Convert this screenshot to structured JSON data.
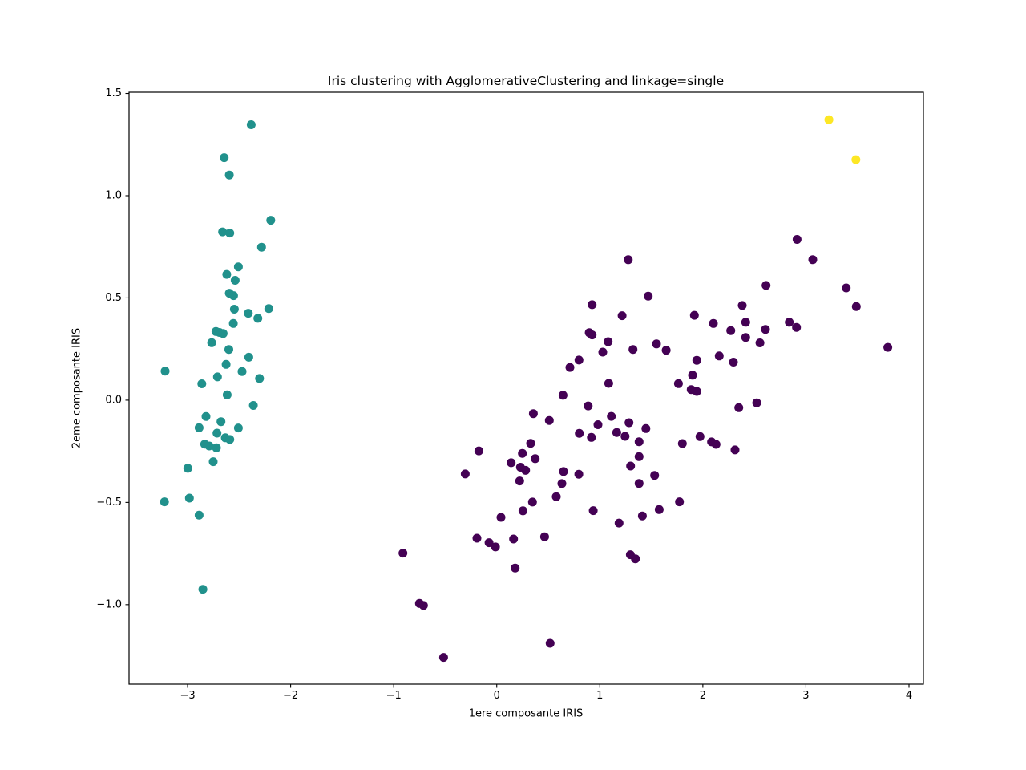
{
  "chart_data": {
    "type": "scatter",
    "title": "Iris clustering with AgglomerativeClustering and linkage=single",
    "xlabel": "1ere composante IRIS",
    "ylabel": "2eme composante IRIS",
    "xlim": [
      -3.568,
      4.14
    ],
    "ylim": [
      -1.389,
      1.506
    ],
    "grid": false,
    "legend_position": "none",
    "marker_radius": 5.5,
    "xticks": {
      "values": [
        -3,
        -2,
        -1,
        0,
        1,
        2,
        3,
        4
      ],
      "labels": [
        "−3",
        "−2",
        "−1",
        "0",
        "1",
        "2",
        "3",
        "4"
      ]
    },
    "yticks": {
      "values": [
        -1.0,
        -0.5,
        0.0,
        0.5,
        1.0,
        1.5
      ],
      "labels": [
        "−1.0",
        "−0.5",
        "0.0",
        "0.5",
        "1.0",
        "1.5"
      ]
    },
    "series": [
      {
        "name": "cluster-0-purple",
        "color": "#440154",
        "points": [
          [
            1.276,
            0.687
          ],
          [
            1.47,
            0.509
          ],
          [
            0.925,
            0.467
          ],
          [
            1.216,
            0.413
          ],
          [
            0.897,
            0.33
          ],
          [
            0.925,
            0.319
          ],
          [
            1.081,
            0.286
          ],
          [
            1.029,
            0.235
          ],
          [
            1.322,
            0.248
          ],
          [
            0.798,
            0.196
          ],
          [
            0.71,
            0.16
          ],
          [
            2.914,
            0.786
          ],
          [
            3.067,
            0.687
          ],
          [
            2.613,
            0.561
          ],
          [
            3.391,
            0.549
          ],
          [
            2.382,
            0.463
          ],
          [
            3.489,
            0.458
          ],
          [
            1.918,
            0.415
          ],
          [
            2.102,
            0.375
          ],
          [
            2.416,
            0.381
          ],
          [
            2.839,
            0.381
          ],
          [
            2.909,
            0.356
          ],
          [
            2.271,
            0.34
          ],
          [
            2.608,
            0.346
          ],
          [
            2.416,
            0.307
          ],
          [
            2.554,
            0.28
          ],
          [
            3.795,
            0.258
          ],
          [
            1.55,
            0.275
          ],
          [
            1.644,
            0.244
          ],
          [
            1.941,
            0.195
          ],
          [
            2.159,
            0.216
          ],
          [
            2.297,
            0.186
          ],
          [
            1.086,
            0.082
          ],
          [
            0.643,
            0.024
          ],
          [
            0.887,
            -0.028
          ],
          [
            0.355,
            -0.066
          ],
          [
            0.51,
            -0.099
          ],
          [
            0.982,
            -0.12
          ],
          [
            1.112,
            -0.079
          ],
          [
            1.283,
            -0.11
          ],
          [
            1.447,
            -0.139
          ],
          [
            0.801,
            -0.162
          ],
          [
            0.918,
            -0.182
          ],
          [
            1.164,
            -0.158
          ],
          [
            1.245,
            -0.177
          ],
          [
            1.381,
            -0.203
          ],
          [
            0.329,
            -0.211
          ],
          [
            -0.174,
            -0.248
          ],
          [
            0.249,
            -0.26
          ],
          [
            0.373,
            -0.286
          ],
          [
            0.14,
            -0.306
          ],
          [
            0.23,
            -0.328
          ],
          [
            0.28,
            -0.343
          ],
          [
            -0.306,
            -0.361
          ],
          [
            0.648,
            -0.349
          ],
          [
            0.796,
            -0.362
          ],
          [
            0.222,
            -0.395
          ],
          [
            0.632,
            -0.408
          ],
          [
            1.381,
            -0.276
          ],
          [
            1.299,
            -0.322
          ],
          [
            1.381,
            -0.407
          ],
          [
            0.578,
            -0.472
          ],
          [
            0.347,
            -0.498
          ],
          [
            0.254,
            -0.541
          ],
          [
            0.041,
            -0.573
          ],
          [
            0.936,
            -0.54
          ],
          [
            1.413,
            -0.566
          ],
          [
            1.9,
            0.122
          ],
          [
            1.763,
            0.081
          ],
          [
            1.887,
            0.052
          ],
          [
            1.941,
            0.043
          ],
          [
            2.523,
            -0.013
          ],
          [
            2.349,
            -0.037
          ],
          [
            1.972,
            -0.178
          ],
          [
            1.801,
            -0.212
          ],
          [
            2.084,
            -0.204
          ],
          [
            2.128,
            -0.216
          ],
          [
            2.312,
            -0.243
          ],
          [
            1.532,
            -0.368
          ],
          [
            1.773,
            -0.497
          ],
          [
            1.576,
            -0.535
          ],
          [
            1.187,
            -0.601
          ],
          [
            -0.192,
            -0.675
          ],
          [
            -0.075,
            -0.697
          ],
          [
            -0.013,
            -0.718
          ],
          [
            0.163,
            -0.679
          ],
          [
            0.464,
            -0.668
          ],
          [
            -0.91,
            -0.748
          ],
          [
            1.296,
            -0.756
          ],
          [
            1.345,
            -0.776
          ],
          [
            0.179,
            -0.821
          ],
          [
            -0.75,
            -0.994
          ],
          [
            -0.711,
            -1.004
          ],
          [
            0.518,
            -1.189
          ],
          [
            -0.516,
            -1.258
          ]
        ]
      },
      {
        "name": "cluster-1-teal",
        "color": "#21918c",
        "points": [
          [
            -2.383,
            1.347
          ],
          [
            -2.645,
            1.186
          ],
          [
            -2.595,
            1.101
          ],
          [
            -2.193,
            0.88
          ],
          [
            -2.66,
            0.823
          ],
          [
            -2.59,
            0.817
          ],
          [
            -2.282,
            0.748
          ],
          [
            -2.507,
            0.652
          ],
          [
            -2.62,
            0.615
          ],
          [
            -2.538,
            0.586
          ],
          [
            -2.595,
            0.523
          ],
          [
            -2.554,
            0.511
          ],
          [
            -2.546,
            0.445
          ],
          [
            -2.411,
            0.425
          ],
          [
            -2.318,
            0.4
          ],
          [
            -2.212,
            0.448
          ],
          [
            -2.556,
            0.375
          ],
          [
            -2.725,
            0.336
          ],
          [
            -2.691,
            0.331
          ],
          [
            -2.655,
            0.326
          ],
          [
            -2.766,
            0.281
          ],
          [
            -2.6,
            0.248
          ],
          [
            -2.406,
            0.21
          ],
          [
            -2.626,
            0.175
          ],
          [
            -3.218,
            0.142
          ],
          [
            -2.471,
            0.14
          ],
          [
            -2.71,
            0.114
          ],
          [
            -2.302,
            0.106
          ],
          [
            -2.862,
            0.08
          ],
          [
            -2.616,
            0.026
          ],
          [
            -2.362,
            -0.026
          ],
          [
            -2.821,
            -0.08
          ],
          [
            -2.676,
            -0.105
          ],
          [
            -2.888,
            -0.135
          ],
          [
            -2.507,
            -0.136
          ],
          [
            -2.715,
            -0.161
          ],
          [
            -2.634,
            -0.184
          ],
          [
            -2.59,
            -0.192
          ],
          [
            -2.834,
            -0.215
          ],
          [
            -2.79,
            -0.224
          ],
          [
            -2.72,
            -0.233
          ],
          [
            -2.751,
            -0.301
          ],
          [
            -2.998,
            -0.333
          ],
          [
            -2.982,
            -0.479
          ],
          [
            -3.224,
            -0.497
          ],
          [
            -2.888,
            -0.562
          ],
          [
            -2.852,
            -0.925
          ]
        ]
      },
      {
        "name": "cluster-2-yellow",
        "color": "#fde725",
        "points": [
          [
            3.223,
            1.372
          ],
          [
            3.485,
            1.176
          ]
        ]
      }
    ]
  }
}
